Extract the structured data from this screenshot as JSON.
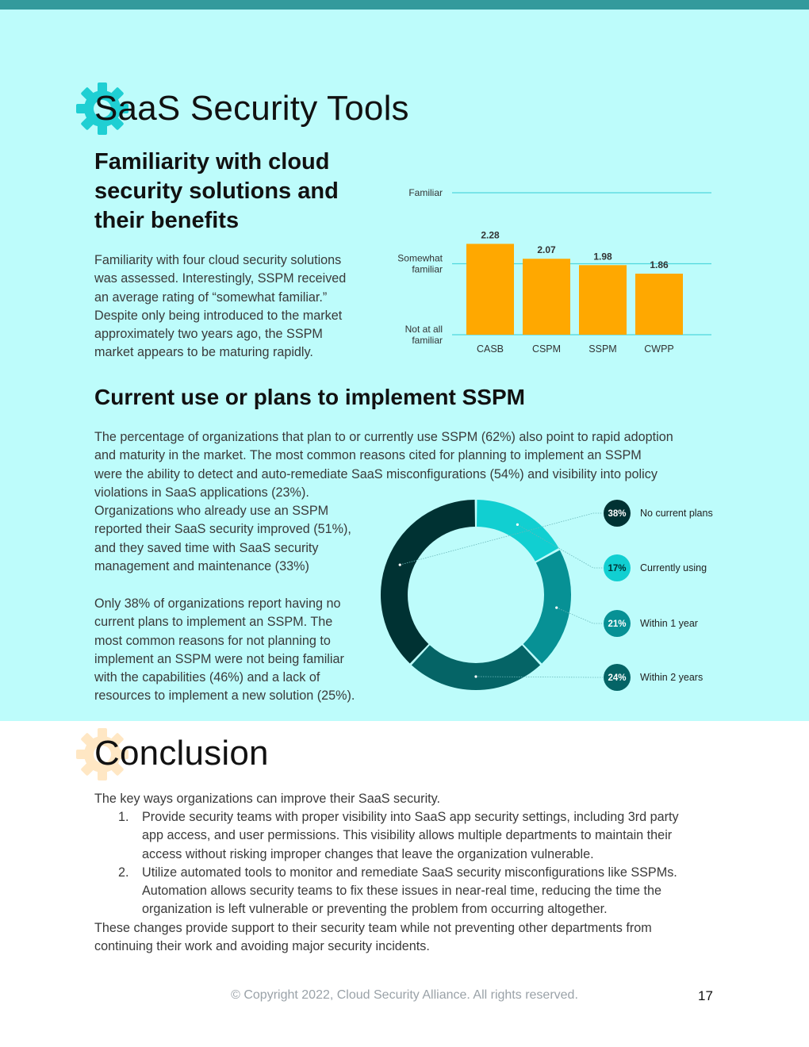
{
  "section1": {
    "title": "SaaS Security Tools",
    "heading1": "Familiarity with cloud security solutions and their benefits",
    "heading1_lines": [
      "Familiarity with cloud",
      "security solutions and",
      "their benefits"
    ],
    "para1_lines": [
      "Familiarity with four cloud security solutions",
      "was assessed. Interestingly, SSPM received",
      "an average rating of “somewhat familiar.”",
      "Despite only being introduced to the market",
      "approximately two years ago, the SSPM",
      "market appears to be maturing rapidly."
    ],
    "heading2": "Current use or plans to implement SSPM",
    "para2_lines": [
      "The percentage of organizations that plan to or currently use SSPM (62%) also point to rapid adoption",
      "and maturity in the market. The most common reasons cited for planning to implement an SSPM",
      "were the ability to detect and auto-remediate SaaS misconfigurations (54%) and visibility into policy",
      "violations in SaaS applications (23%)."
    ],
    "para3_lines": [
      "Organizations who already use an SSPM",
      "reported their SaaS security improved (51%),",
      "and they saved time with SaaS security",
      "management and maintenance (33%)"
    ],
    "para4_lines": [
      "Only 38% of organizations report having no",
      "current plans to implement an SSPM. The",
      "most common reasons for not planning to",
      "implement an SSPM were not being familiar",
      "with the capabilities (46%) and a lack of",
      "resources to implement a new solution (25%)."
    ]
  },
  "chart_data": [
    {
      "type": "bar",
      "categories": [
        "CASB",
        "CSPM",
        "SSPM",
        "CWPP"
      ],
      "values": [
        2.28,
        2.07,
        1.98,
        1.86
      ],
      "data_labels": [
        "2.28",
        "2.07",
        "1.98",
        "1.86"
      ],
      "y_tick_values": [
        1,
        2,
        3
      ],
      "y_tick_labels": [
        [
          "Not at all",
          "familiar"
        ],
        [
          "Somewhat",
          "familiar"
        ],
        [
          "Familiar"
        ]
      ],
      "ylim": [
        1,
        3
      ],
      "bar_color": "#ffa800",
      "grid_color": "#4fd6dc",
      "grid": true
    },
    {
      "type": "pie",
      "style": "donut",
      "categories": [
        "Currently using",
        "Within 1 year",
        "Within 2 years",
        "No current plans"
      ],
      "values": [
        17,
        21,
        24,
        38
      ],
      "labels": [
        "17%",
        "21%",
        "24%",
        "38%"
      ],
      "colors": [
        "#11cfd1",
        "#079195",
        "#056466",
        "#003233"
      ],
      "legend": [
        {
          "label": "No current plans",
          "value": "38%",
          "color": "#003233"
        },
        {
          "label": "Currently using",
          "value": "17%",
          "color": "#11cfd1"
        },
        {
          "label": "Within 1 year",
          "value": "21%",
          "color": "#079195"
        },
        {
          "label": "Within 2 years",
          "value": "24%",
          "color": "#056466"
        }
      ],
      "legend_position": "right"
    }
  ],
  "section2": {
    "title": "Conclusion",
    "intro": "The key ways organizations can improve their SaaS security.",
    "items": [
      {
        "num": "1.",
        "lines": [
          "Provide security teams with proper visibility into SaaS app security settings, including 3rd party",
          "app access, and user permissions. This visibility allows multiple departments to maintain their",
          "access without risking improper changes that leave the organization vulnerable."
        ]
      },
      {
        "num": "2.",
        "lines": [
          "Utilize automated tools to monitor and remediate SaaS security misconfigurations like SSPMs.",
          "Automation allows security teams to fix these issues in near-real time, reducing the time the",
          "organization is left vulnerable or preventing the problem from occurring altogether."
        ]
      }
    ],
    "outro_lines": [
      "These changes provide support to their security team while not preventing other departments from",
      "continuing their work and avoiding major security incidents."
    ]
  },
  "footer": {
    "copyright": "© Copyright 2022, Cloud Security Alliance. All rights reserved.",
    "page_number": "17"
  },
  "colors": {
    "top_bar": "#339a9c",
    "panel_bg": "#bdfcfb",
    "gear_teal": "#1fcfd3",
    "gear_peach": "#ffe7c4"
  },
  "icons": [
    "gear-icon",
    "gear-icon"
  ]
}
